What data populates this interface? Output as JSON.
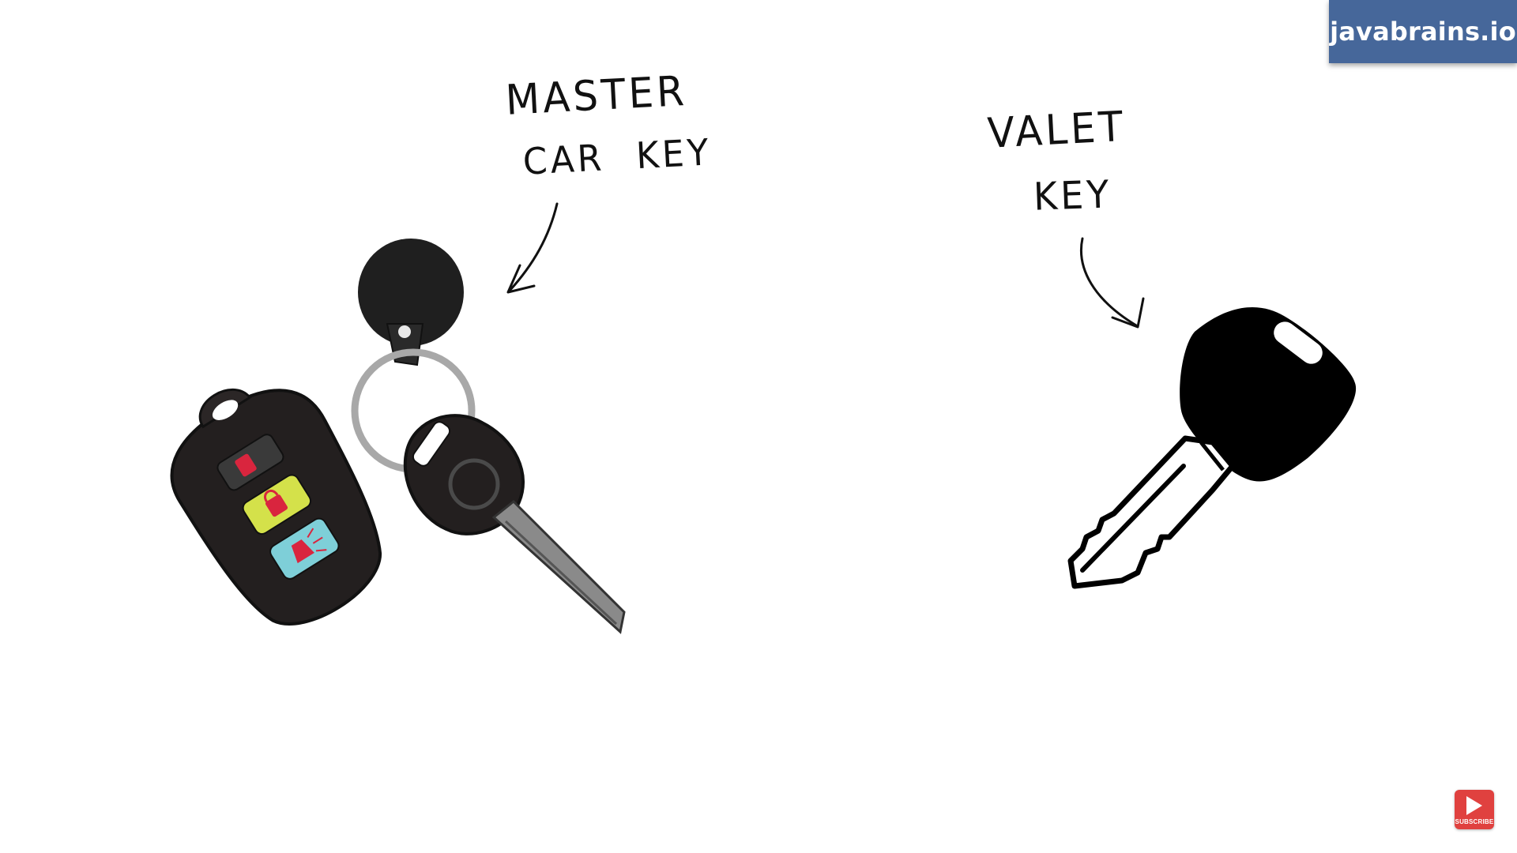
{
  "brand": {
    "text": "javabrains.io",
    "color": "#46679a"
  },
  "labels": {
    "master_line1": "MASTER",
    "master_line2": "CAR KEY",
    "valet_line1": "VALET",
    "valet_line2": "KEY"
  },
  "icons": {
    "master_key": "car-key-fob-icon",
    "valet_key": "valet-key-icon",
    "subscribe": "play-icon"
  },
  "subscribe": {
    "label": "SUBSCRIBE",
    "color": "#e0413f"
  },
  "fob_button_colors": {
    "top": "#3a3a3a",
    "middle": "#d4e14a",
    "bottom": "#7ecfd8",
    "lock_icon": "#d9253e"
  }
}
